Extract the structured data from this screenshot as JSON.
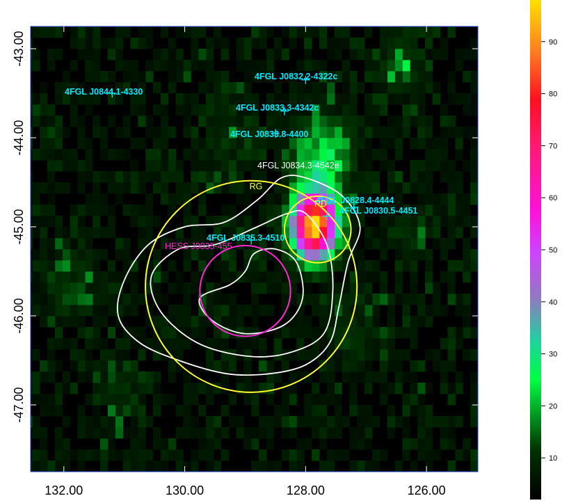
{
  "chart_data": {
    "type": "heatmap",
    "xlim": [
      132.55,
      125.15
    ],
    "ylim": [
      -47.75,
      -42.75
    ],
    "x_ticks": [
      132.0,
      130.0,
      128.0,
      126.0
    ],
    "x_tick_labels": [
      "132.00",
      "130.00",
      "128.00",
      "126.00"
    ],
    "y_ticks": [
      -43.0,
      -44.0,
      -45.0,
      -46.0,
      -47.0
    ],
    "y_tick_labels": [
      "-43.00",
      "-44.00",
      "-45.00",
      "-46.00",
      "-47.00"
    ],
    "colorbar": {
      "min": 2,
      "max": 98,
      "ticks": [
        10,
        20,
        30,
        40,
        50,
        60,
        70,
        80,
        90
      ],
      "tick_labels": [
        "10",
        "20",
        "30",
        "40",
        "50",
        "60",
        "70",
        "80",
        "90"
      ],
      "colormap": "black-green-cyan-purple-magenta-red-orange-yellow"
    },
    "sources": [
      {
        "name": "4FGL J0844.1-4330",
        "x": 131.2,
        "y": -43.5,
        "color": "#00e8ff",
        "marker": "+"
      },
      {
        "name": "4FGL J0832.2-4322c",
        "x": 128.0,
        "y": -43.35,
        "color": "#00e8ff",
        "marker": "+"
      },
      {
        "name": "4FGL J0833.3-4342c",
        "x": 128.35,
        "y": -43.7,
        "color": "#00e8ff",
        "marker": "+"
      },
      {
        "name": "4FGL J0833.8-4400",
        "x": 128.5,
        "y": -43.95,
        "color": "#00e8ff",
        "marker": "+"
      },
      {
        "name": "4FGL J0828.4-4444",
        "x": 127.65,
        "y": -44.88,
        "color": "#00e8ff",
        "marker": "+"
      },
      {
        "name": "4FGL J0830.5-4451",
        "x": 127.2,
        "y": -44.78,
        "color": "#00e8ff",
        "marker": "+"
      },
      {
        "name": "4FGL J0835.3-4510",
        "x": 128.9,
        "y": -45.15,
        "color": "#00e8ff",
        "marker": "+"
      },
      {
        "name": "HESS J0835-455",
        "x": 128.9,
        "y": -45.15,
        "color": "#ff2ad4",
        "marker": "none"
      }
    ],
    "extended_source": {
      "name": "4FGL J0834.3-4542e",
      "color": "#ffffff"
    },
    "regions": [
      {
        "name": "RG",
        "x": 128.9,
        "y": -45.67,
        "radius_deg": 1.75,
        "color": "#ffff33"
      },
      {
        "name": "RD",
        "x": 127.8,
        "y": -45.03,
        "radius_deg": 0.55,
        "color": "#ffff33"
      },
      {
        "name": "",
        "x": 129.0,
        "y": -45.72,
        "radius_deg": 0.75,
        "color": "#ff2ad4"
      }
    ],
    "hotspot": {
      "x": 127.8,
      "y": -45.05,
      "peak": 98
    },
    "contour_levels": 3
  }
}
